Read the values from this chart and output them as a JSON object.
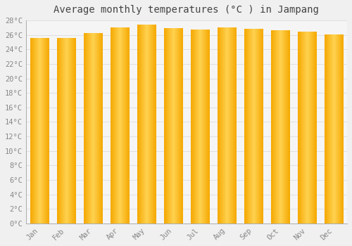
{
  "title": "Average monthly temperatures (°C ) in Jampang",
  "months": [
    "Jan",
    "Feb",
    "Mar",
    "Apr",
    "May",
    "Jun",
    "Jul",
    "Aug",
    "Sep",
    "Oct",
    "Nov",
    "Dec"
  ],
  "temperatures": [
    25.5,
    25.5,
    26.2,
    27.0,
    27.4,
    26.9,
    26.7,
    27.0,
    26.8,
    26.6,
    26.4,
    26.0
  ],
  "bar_color_center": "#FFD055",
  "bar_color_edge": "#F5A800",
  "background_color": "#f0f0f0",
  "plot_bg_color": "#f5f5f5",
  "grid_color": "#dddddd",
  "ytick_labels": [
    "0°C",
    "2°C",
    "4°C",
    "6°C",
    "8°C",
    "10°C",
    "12°C",
    "14°C",
    "16°C",
    "18°C",
    "20°C",
    "22°C",
    "24°C",
    "26°C",
    "28°C"
  ],
  "ytick_values": [
    0,
    2,
    4,
    6,
    8,
    10,
    12,
    14,
    16,
    18,
    20,
    22,
    24,
    26,
    28
  ],
  "ylim": [
    0,
    28
  ],
  "title_fontsize": 10,
  "tick_fontsize": 7.5,
  "font_color": "#888888"
}
